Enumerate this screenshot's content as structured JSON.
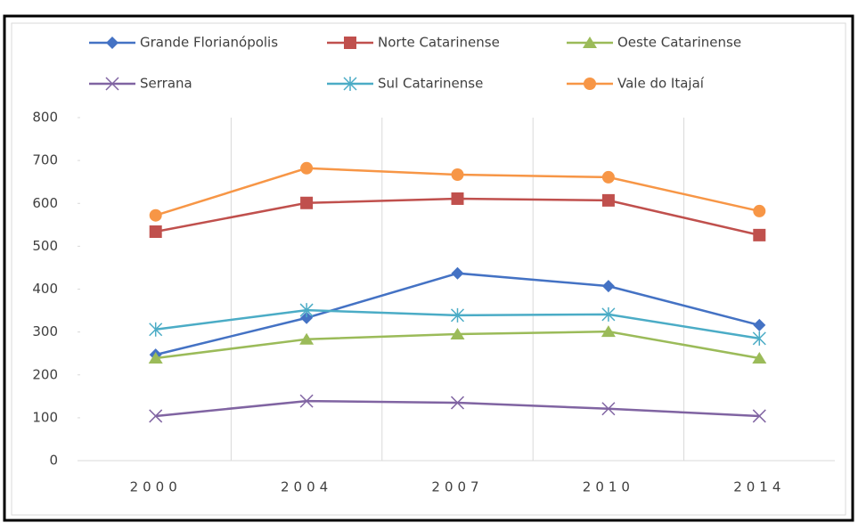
{
  "chart_data": {
    "type": "line",
    "categories": [
      "2000",
      "2004",
      "2007",
      "2010",
      "2014"
    ],
    "series": [
      {
        "name": "Grande Florianópolis",
        "color": "#4472c4",
        "marker": "diamond",
        "values": [
          247,
          333,
          437,
          407,
          316
        ]
      },
      {
        "name": "Norte Catarinense",
        "color": "#c0504d",
        "marker": "square",
        "values": [
          534,
          601,
          611,
          607,
          526
        ]
      },
      {
        "name": "Oeste Catarinense",
        "color": "#9bbb59",
        "marker": "triangle",
        "values": [
          239,
          283,
          295,
          301,
          239
        ]
      },
      {
        "name": "Serrana",
        "color": "#8064a2",
        "marker": "x",
        "values": [
          104,
          139,
          135,
          121,
          104
        ]
      },
      {
        "name": "Sul Catarinense",
        "color": "#4bacc6",
        "marker": "star",
        "values": [
          306,
          351,
          339,
          341,
          285
        ]
      },
      {
        "name": "Vale do Itajaí",
        "color": "#f79646",
        "marker": "circle",
        "values": [
          572,
          682,
          667,
          661,
          582
        ]
      }
    ],
    "ylim": [
      0,
      800
    ],
    "yticks": [
      0,
      100,
      200,
      300,
      400,
      500,
      600,
      700,
      800
    ],
    "grid": "vertical",
    "legend": "top"
  }
}
